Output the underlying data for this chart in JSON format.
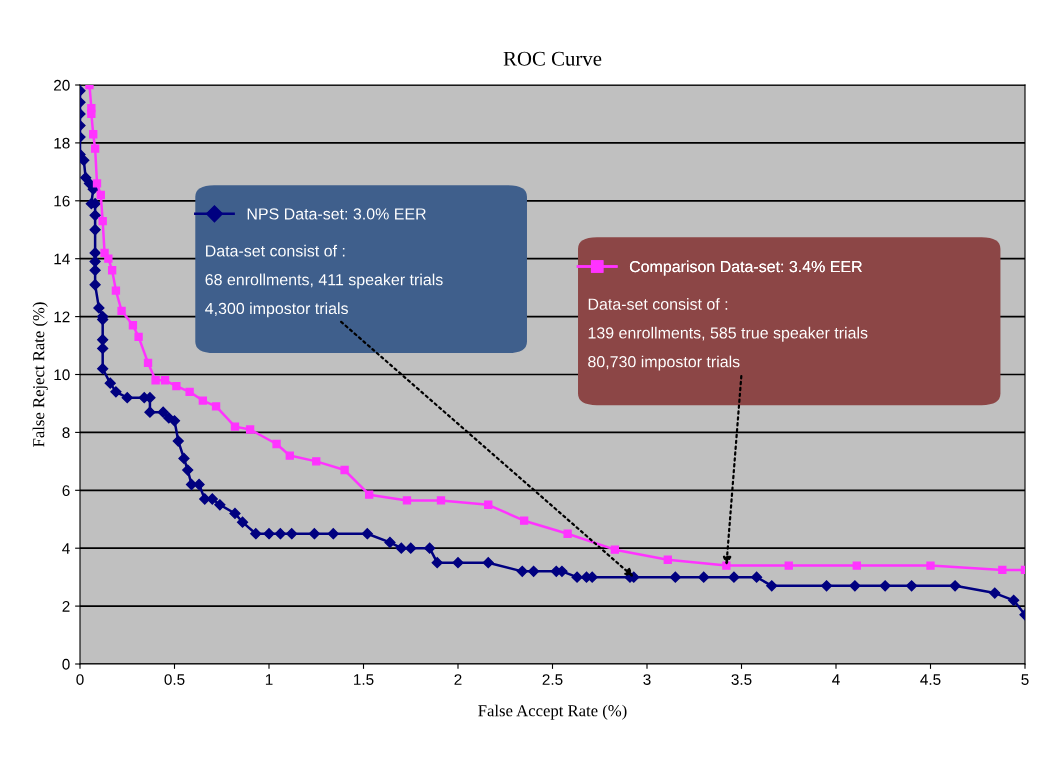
{
  "chart_data": {
    "type": "line",
    "title": "ROC Curve",
    "xlabel": "False Accept Rate (%)",
    "ylabel": "False Reject Rate (%)",
    "xlim": [
      0,
      5
    ],
    "xticks": [
      0,
      0.5,
      1,
      1.5,
      2,
      2.5,
      3,
      3.5,
      4,
      4.5,
      5
    ],
    "ylim": [
      0,
      20
    ],
    "yticks": [
      0,
      2,
      4,
      6,
      8,
      10,
      12,
      14,
      16,
      18,
      20
    ],
    "grid": "y",
    "legend": "top",
    "line_style": "solid",
    "series": [
      {
        "name": "NPS Data-set: 3.0% EER",
        "color": "#000080",
        "marker": "diamond",
        "x": [
          0.0,
          0.0,
          0.0,
          0.0,
          0.0,
          0.0,
          0.02,
          0.03,
          0.05,
          0.07,
          0.06,
          0.08,
          0.08,
          0.08,
          0.08,
          0.08,
          0.08,
          0.08,
          0.1,
          0.12,
          0.12,
          0.12,
          0.12,
          0.12,
          0.16,
          0.19,
          0.25,
          0.34,
          0.37,
          0.37,
          0.44,
          0.47,
          0.5,
          0.52,
          0.55,
          0.57,
          0.59,
          0.63,
          0.66,
          0.7,
          0.74,
          0.82,
          0.86,
          0.93,
          1.0,
          1.06,
          1.12,
          1.24,
          1.34,
          1.52,
          1.64,
          1.7,
          1.75,
          1.85,
          1.89,
          2.0,
          2.16,
          2.34,
          2.4,
          2.52,
          2.55,
          2.63,
          2.68,
          2.71,
          2.91,
          2.93,
          3.15,
          3.3,
          3.46,
          3.58,
          3.66,
          3.95,
          4.1,
          4.26,
          4.4,
          4.63,
          4.84,
          4.94,
          5.0
        ],
        "values": [
          19.8,
          19.4,
          19.0,
          18.6,
          18.2,
          17.6,
          17.4,
          16.8,
          16.6,
          16.4,
          15.9,
          15.9,
          15.5,
          15.0,
          14.2,
          13.9,
          13.6,
          13.1,
          12.3,
          12.0,
          11.9,
          11.2,
          10.9,
          10.2,
          9.7,
          9.4,
          9.2,
          9.2,
          9.2,
          8.7,
          8.7,
          8.5,
          8.4,
          7.7,
          7.1,
          6.7,
          6.2,
          6.2,
          5.7,
          5.7,
          5.5,
          5.2,
          4.9,
          4.5,
          4.5,
          4.5,
          4.5,
          4.5,
          4.5,
          4.5,
          4.2,
          4.0,
          4.0,
          4.0,
          3.5,
          3.5,
          3.5,
          3.2,
          3.2,
          3.2,
          3.2,
          3.0,
          3.0,
          3.0,
          3.0,
          3.0,
          3.0,
          3.0,
          3.0,
          3.0,
          2.7,
          2.7,
          2.7,
          2.7,
          2.7,
          2.7,
          2.45,
          2.2,
          1.7
        ]
      },
      {
        "name": "Comparison Data-set: 3.4% EER",
        "color": "#ff33ff",
        "marker": "square",
        "x": [
          0.05,
          0.06,
          0.06,
          0.07,
          0.08,
          0.09,
          0.11,
          0.12,
          0.13,
          0.15,
          0.17,
          0.19,
          0.22,
          0.28,
          0.31,
          0.36,
          0.4,
          0.45,
          0.51,
          0.58,
          0.65,
          0.72,
          0.82,
          0.9,
          1.04,
          1.11,
          1.25,
          1.4,
          1.53,
          1.73,
          1.91,
          2.16,
          2.35,
          2.58,
          2.83,
          3.11,
          3.42,
          3.75,
          4.11,
          4.5,
          4.88,
          5.0
        ],
        "values": [
          20.0,
          19.2,
          19.0,
          18.3,
          17.8,
          16.6,
          16.2,
          15.3,
          14.2,
          14.0,
          13.6,
          12.9,
          12.2,
          11.7,
          11.3,
          10.4,
          9.8,
          9.8,
          9.6,
          9.4,
          9.1,
          8.9,
          8.2,
          8.1,
          7.6,
          7.2,
          7.0,
          6.7,
          5.85,
          5.65,
          5.65,
          5.5,
          4.95,
          4.5,
          3.95,
          3.6,
          3.4,
          3.4,
          3.4,
          3.4,
          3.25,
          3.25
        ]
      }
    ],
    "annotations": [
      {
        "text": "Data-set consist of :\n68 enrollments, 411 speaker trials\n4,300 impostor trials",
        "x": 2.93,
        "y": 3.0
      },
      {
        "text": "Data-set consist of :\n139 enrollments, 585 true speaker trials\n80,730 impostor trials",
        "x": 3.42,
        "y": 3.4
      }
    ]
  }
}
